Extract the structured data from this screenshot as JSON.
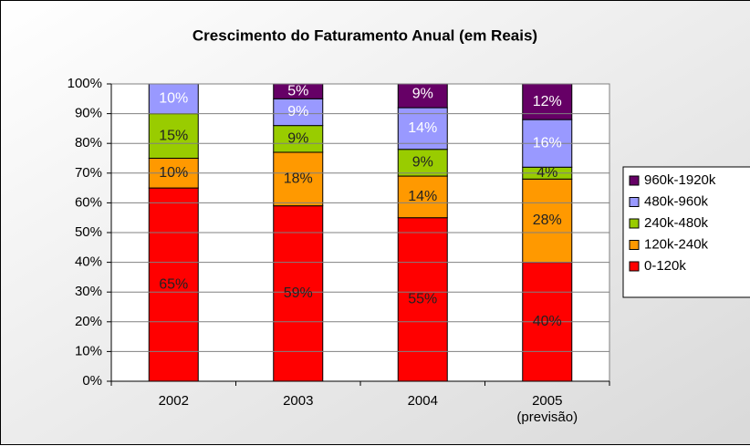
{
  "chart_data": {
    "type": "stacked_bar",
    "title": "Crescimento do Faturamento Anual (em Reais)",
    "categories": [
      "2002",
      "2003",
      "2004",
      "2005 (previsão)"
    ],
    "series": [
      {
        "name": "0-120k",
        "color": "#ff0000",
        "values": [
          65,
          59,
          55,
          40
        ],
        "value_labels": [
          "65%",
          "59%",
          "55%",
          "40%"
        ]
      },
      {
        "name": "120k-240k",
        "color": "#ff9900",
        "values": [
          10,
          18,
          14,
          28
        ],
        "value_labels": [
          "10%",
          "18%",
          "14%",
          "28%"
        ]
      },
      {
        "name": "240k-480k",
        "color": "#99cc00",
        "values": [
          15,
          9,
          9,
          4
        ],
        "value_labels": [
          "15%",
          "9%",
          "9%",
          "4%"
        ]
      },
      {
        "name": "480k-960k",
        "color": "#9999ff",
        "values": [
          10,
          9,
          14,
          16
        ],
        "value_labels": [
          "10%",
          "9%",
          "14%",
          "16%"
        ]
      },
      {
        "name": "960k-1920k",
        "color": "#660066",
        "values": [
          null,
          5,
          9,
          12
        ],
        "value_labels": [
          null,
          "5%",
          "9%",
          "12%"
        ]
      }
    ],
    "ylim": [
      0,
      100
    ],
    "yticks": [
      {
        "value": 0,
        "label": "0%"
      },
      {
        "value": 10,
        "label": "10%"
      },
      {
        "value": 20,
        "label": "20%"
      },
      {
        "value": 30,
        "label": "30%"
      },
      {
        "value": 40,
        "label": "40%"
      },
      {
        "value": 50,
        "label": "50%"
      },
      {
        "value": 60,
        "label": "60%"
      },
      {
        "value": 70,
        "label": "70%"
      },
      {
        "value": 80,
        "label": "80%"
      },
      {
        "value": 90,
        "label": "90%"
      },
      {
        "value": 100,
        "label": "100%"
      }
    ],
    "grid": true,
    "legend": "right"
  }
}
